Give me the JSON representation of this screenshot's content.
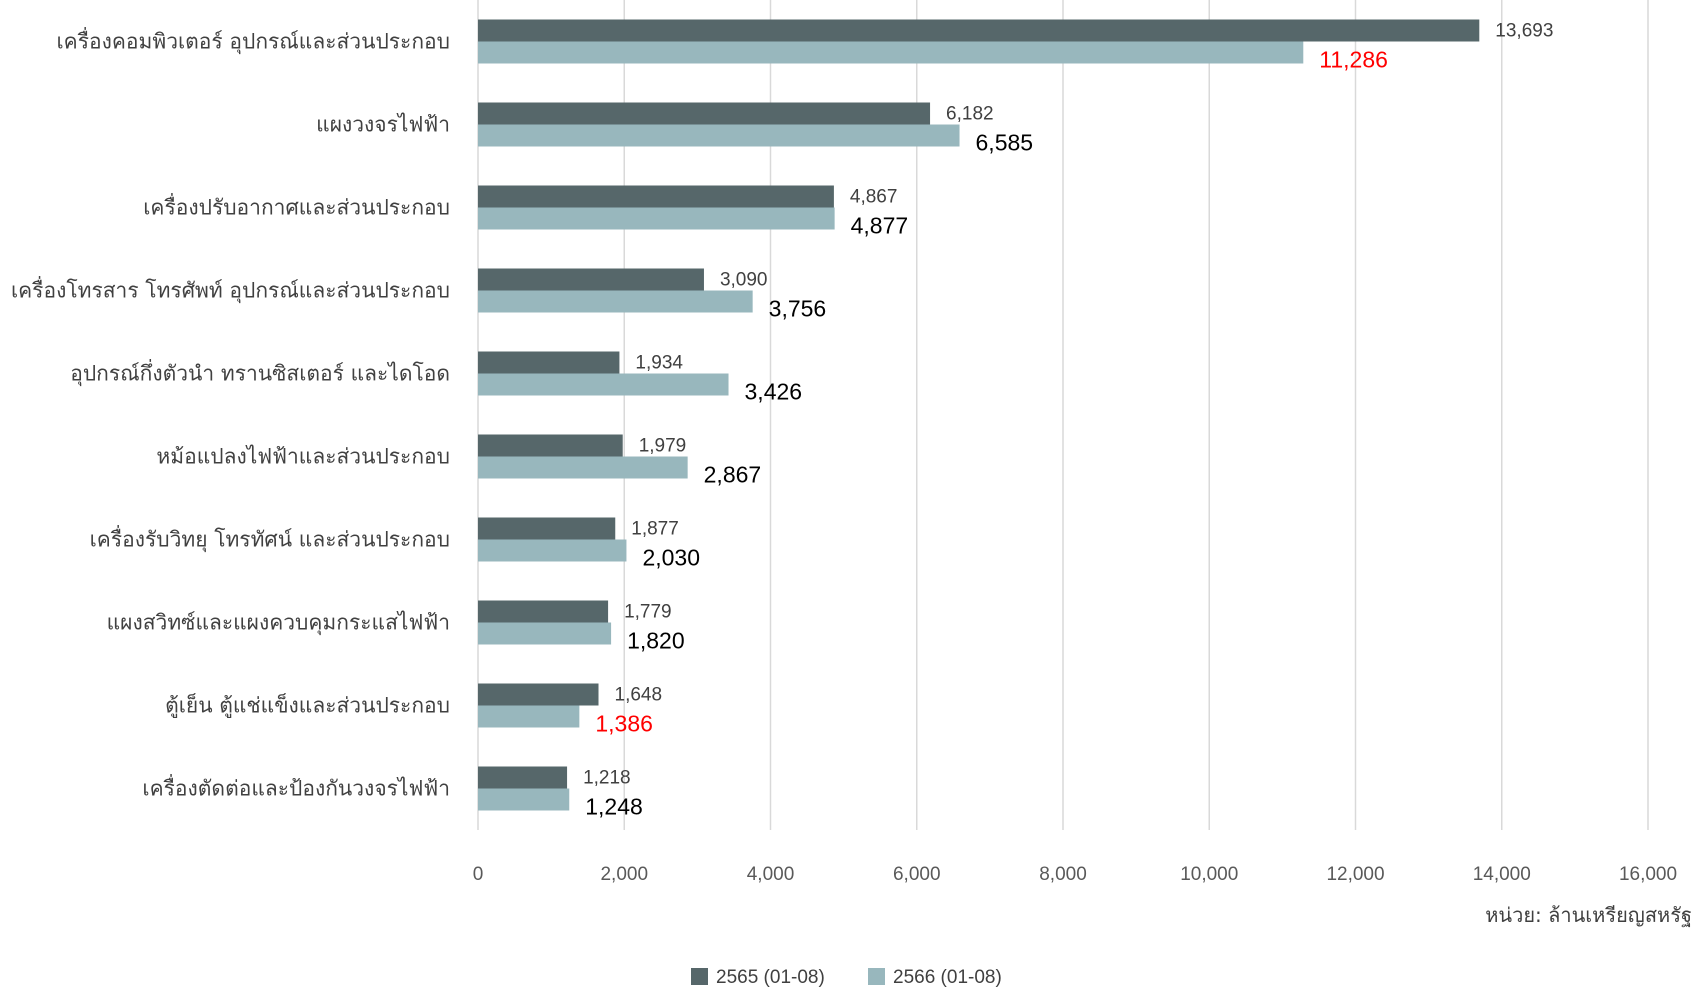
{
  "chart_data": {
    "type": "bar",
    "orientation": "horizontal",
    "categories": [
      "เครื่องคอมพิวเตอร์ อุปกรณ์และส่วนประกอบ",
      "แผงวงจรไฟฟ้า",
      "เครื่องปรับอากาศและส่วนประกอบ",
      "เครื่องโทรสาร โทรศัพท์ อุปกรณ์และส่วนประกอบ",
      "อุปกรณ์กึ่งตัวนำ ทรานซิสเตอร์ และไดโอด",
      "หม้อแปลงไฟฟ้าและส่วนประกอบ",
      "เครื่องรับวิทยุ โทรทัศน์ และส่วนประกอบ",
      "แผงสวิทซ์และแผงควบคุมกระแสไฟฟ้า",
      "ตู้เย็น ตู้แช่แข็งและส่วนประกอบ",
      "เครื่องตัดต่อและป้องกันวงจรไฟฟ้า"
    ],
    "series": [
      {
        "name": "2565 (01-08)",
        "color": "#56676a",
        "values": [
          13693,
          6182,
          4867,
          3090,
          1934,
          1979,
          1877,
          1779,
          1648,
          1218
        ],
        "labels": [
          "13,693",
          "6,182",
          "4,867",
          "3,090",
          "1,934",
          "1,979",
          "1,877",
          "1,779",
          "1,648",
          "1,218"
        ]
      },
      {
        "name": "2566 (01-08)",
        "color": "#98b7bd",
        "values": [
          11286,
          6585,
          4877,
          3756,
          3426,
          2867,
          2030,
          1820,
          1386,
          1248
        ],
        "labels": [
          "11,286",
          "6,585",
          "4,877",
          "3,756",
          "3,426",
          "2,867",
          "2,030",
          "1,820",
          "1,386",
          "1,248"
        ],
        "label_colors": [
          "#ff0000",
          "#000000",
          "#000000",
          "#000000",
          "#000000",
          "#000000",
          "#000000",
          "#000000",
          "#ff0000",
          "#000000"
        ]
      }
    ],
    "xlim": [
      0,
      16000
    ],
    "x_ticks": [
      0,
      2000,
      4000,
      6000,
      8000,
      10000,
      12000,
      14000,
      16000
    ],
    "x_tick_labels": [
      "0",
      "2,000",
      "4,000",
      "6,000",
      "8,000",
      "10,000",
      "12,000",
      "14,000",
      "16,000"
    ],
    "unit_label": "หน่วย: ล้านเหรียญสหรัฐ",
    "grid": "vertical",
    "gridline_color": "#d9d9d9",
    "legend_position": "bottom"
  }
}
